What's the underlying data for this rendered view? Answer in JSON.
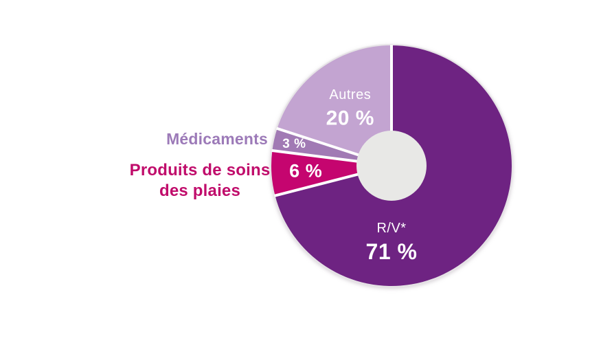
{
  "page": {
    "background_color": "#FFFFFF"
  },
  "labels": {
    "medicaments": {
      "text": "Médicaments",
      "color": "#9C7AB8"
    },
    "produits": {
      "line1": "Produits de soins",
      "line2": "des plaies",
      "color": "#C00C6B"
    }
  },
  "chart_data": {
    "type": "pie",
    "subtype": "donut",
    "title": "",
    "start_angle_deg": 0,
    "direction": "clockwise",
    "hole_color": "#E8E8E6",
    "rim_color": "#E6E3E6",
    "separator_color": "#FFFFFF",
    "categories": [
      "R/V*",
      "Produits de soins des plaies",
      "Médicaments",
      "Autres"
    ],
    "values": [
      71,
      6,
      3,
      20
    ],
    "segments": [
      {
        "id": "rv",
        "name": "R/V*",
        "value_pct": 71,
        "value_label": "71 %",
        "color": "#6E2382",
        "text_color": "#FFFFFF",
        "name_inside": true
      },
      {
        "id": "produits-de-soins-des-plaies",
        "name": "Produits de soins des plaies",
        "value_pct": 6,
        "value_label": "6 %",
        "color": "#C5056F",
        "text_color": "#FFFFFF",
        "name_inside": false
      },
      {
        "id": "medicaments",
        "name": "Médicaments",
        "value_pct": 3,
        "value_label": "3 %",
        "color": "#A17AB4",
        "text_color": "#FFFFFF",
        "name_inside": false
      },
      {
        "id": "autres",
        "name": "Autres",
        "value_pct": 20,
        "value_label": "20 %",
        "color": "#C3A4D1",
        "text_color": "#FFFFFF",
        "name_inside": true
      }
    ],
    "layout": {
      "center": [
        570,
        241
      ],
      "outer_radius": 175,
      "inner_radius": 51,
      "separator_width": 4,
      "legend_position": "none",
      "label_positions": [
        {
          "angle_deg": 180,
          "radius": 108,
          "name_size": 20,
          "value_size": 32,
          "line_gap": 17
        },
        {
          "angle_deg": 266.5,
          "radius": 125,
          "value_size": 27
        },
        {
          "angle_deg": 282.5,
          "radius": 145,
          "value_size": 19
        },
        {
          "angle_deg": 325,
          "radius": 105,
          "name_size": 20,
          "value_size": 30,
          "line_gap": 17
        }
      ]
    }
  }
}
